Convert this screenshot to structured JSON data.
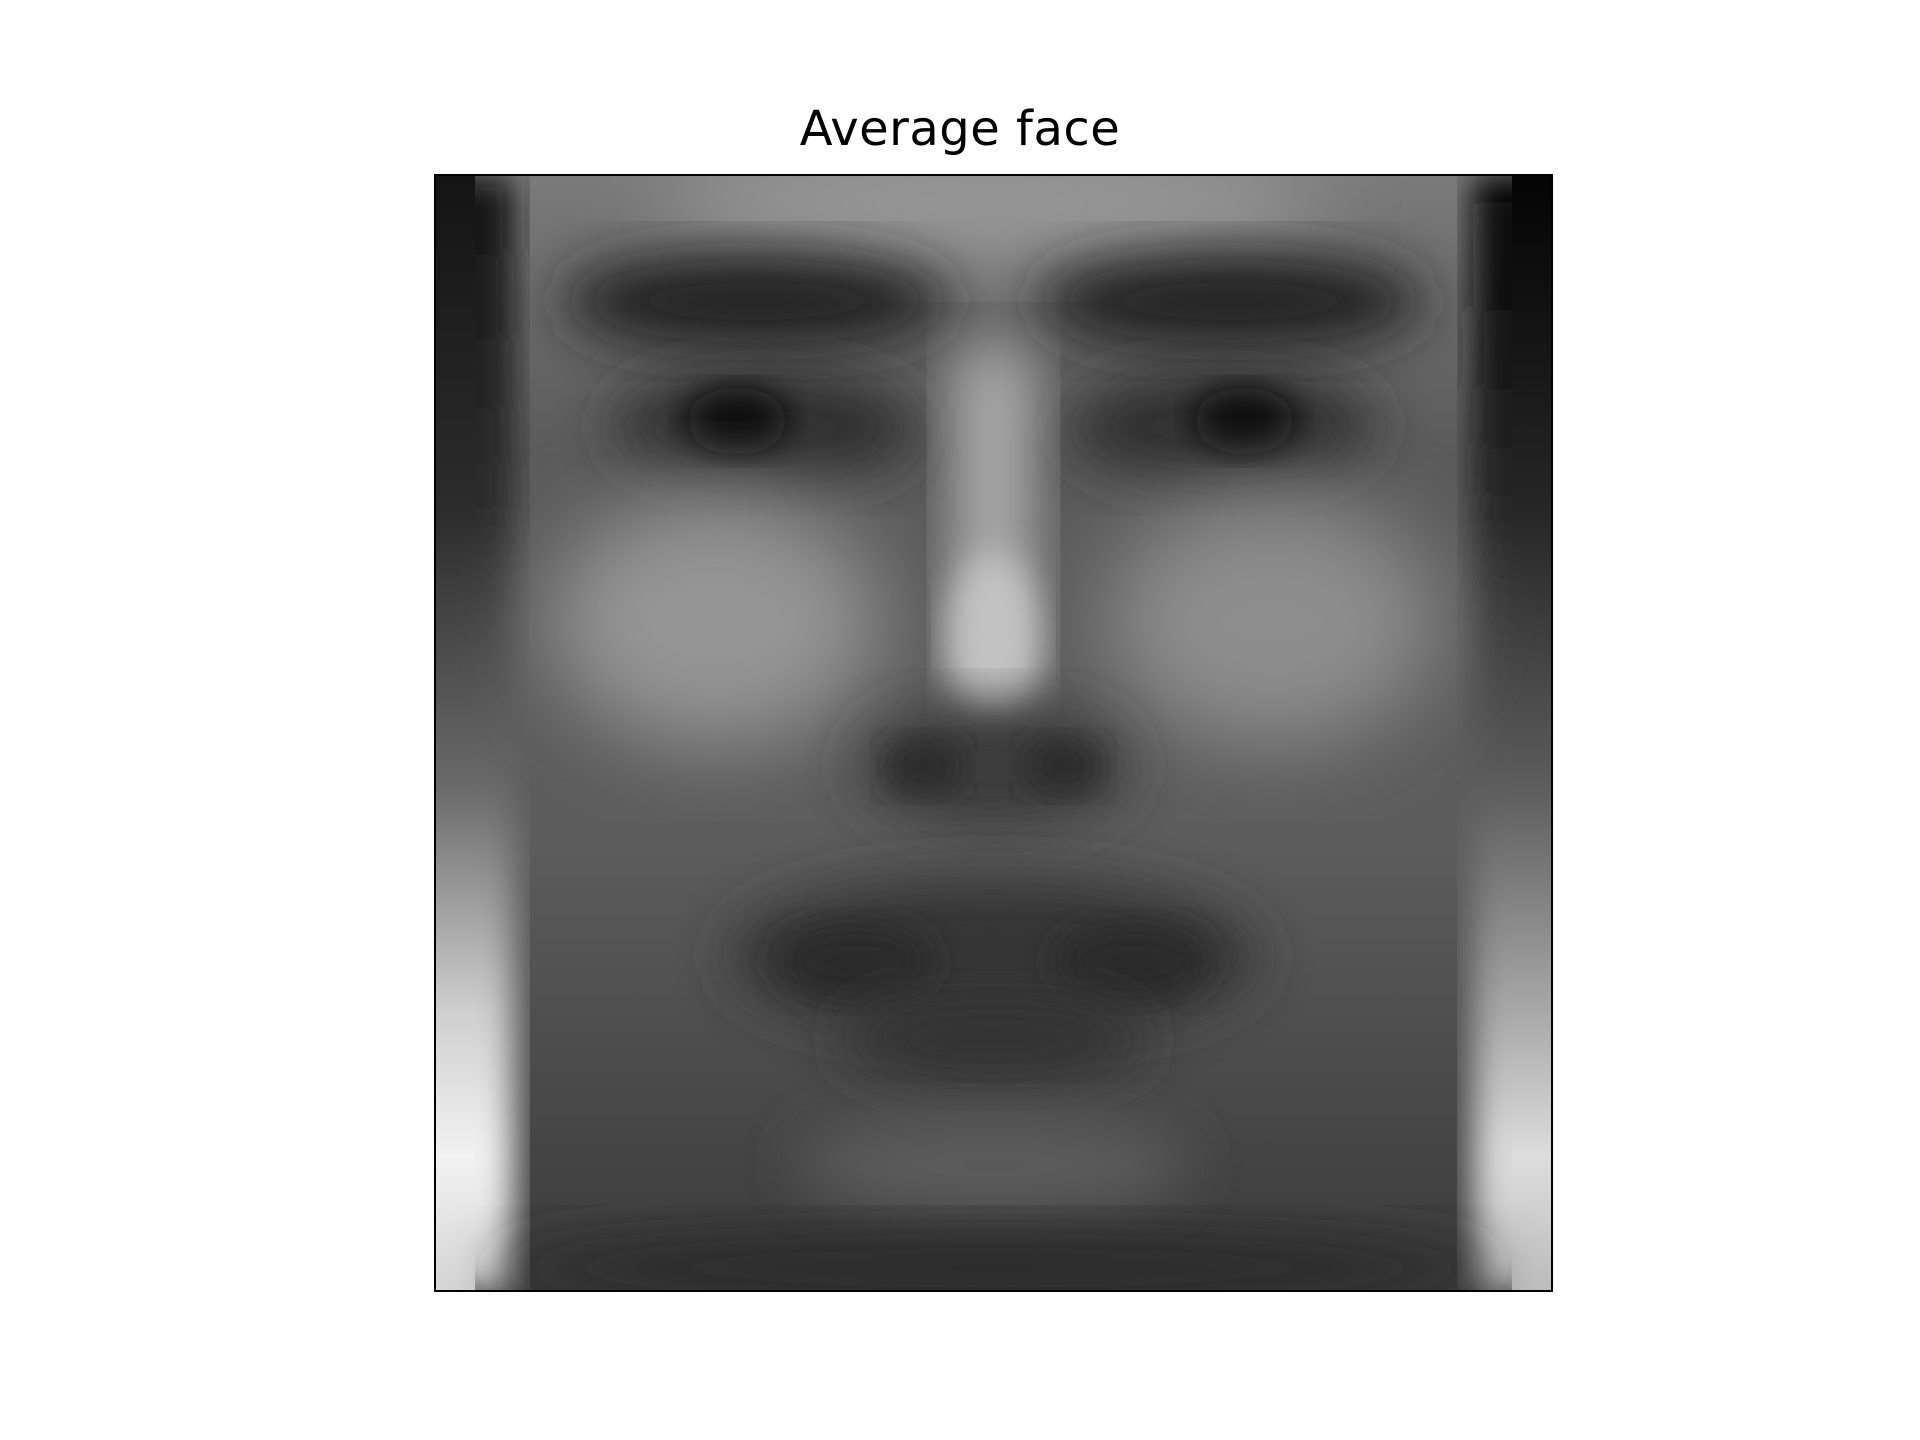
{
  "figure": {
    "title": "Average face"
  },
  "image": {
    "colormap": "gray",
    "description_icon": "grayscale-face-icon"
  }
}
